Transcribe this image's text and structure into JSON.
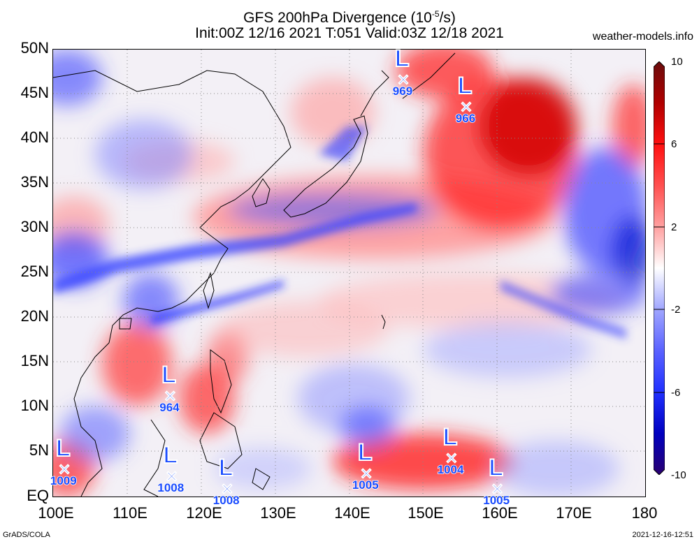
{
  "header": {
    "title_line1": "GFS 200hPa Divergence (10",
    "title_exp": "-5",
    "title_unit": "/s)",
    "title_line2": "Init:00Z 12/16 2021 T:051 Valid:03Z 12/18 2021",
    "site": "weather-models.info"
  },
  "axes": {
    "lat_labels": [
      "50N",
      "45N",
      "40N",
      "35N",
      "30N",
      "25N",
      "20N",
      "15N",
      "10N",
      "5N",
      "EQ"
    ],
    "lon_labels": [
      "100E",
      "110E",
      "120E",
      "130E",
      "140E",
      "150E",
      "160E",
      "170E",
      "180"
    ]
  },
  "colorbar": {
    "labels": [
      "10",
      "6",
      "2",
      "-2",
      "-6",
      "-10"
    ],
    "colors": [
      "#6a0d0d",
      "#d40000",
      "#ff3030",
      "#ff8a8a",
      "#ffd6d6",
      "#ffffff",
      "#d6d9ff",
      "#8a90ff",
      "#3a44ff",
      "#0000d0",
      "#2a0070"
    ]
  },
  "lows": [
    {
      "pressure": "969",
      "lon": 147.3,
      "lat": 46.6
    },
    {
      "pressure": "966",
      "lon": 155.8,
      "lat": 43.5
    },
    {
      "pressure": "964",
      "lon": 115.8,
      "lat": 11.2
    },
    {
      "pressure": "1009",
      "lon": 101.5,
      "lat": 3.0
    },
    {
      "pressure": "1008",
      "lon": 116.0,
      "lat": 2.2
    },
    {
      "pressure": "1008",
      "lon": 123.5,
      "lat": 0.8
    },
    {
      "pressure": "1005",
      "lon": 142.3,
      "lat": 2.5
    },
    {
      "pressure": "1004",
      "lon": 153.8,
      "lat": 4.2
    },
    {
      "pressure": "1005",
      "lon": 160.0,
      "lat": 0.8
    }
  ],
  "footer": {
    "left": "GrADS/COLA",
    "right": "2021-12-16-12:51"
  }
}
